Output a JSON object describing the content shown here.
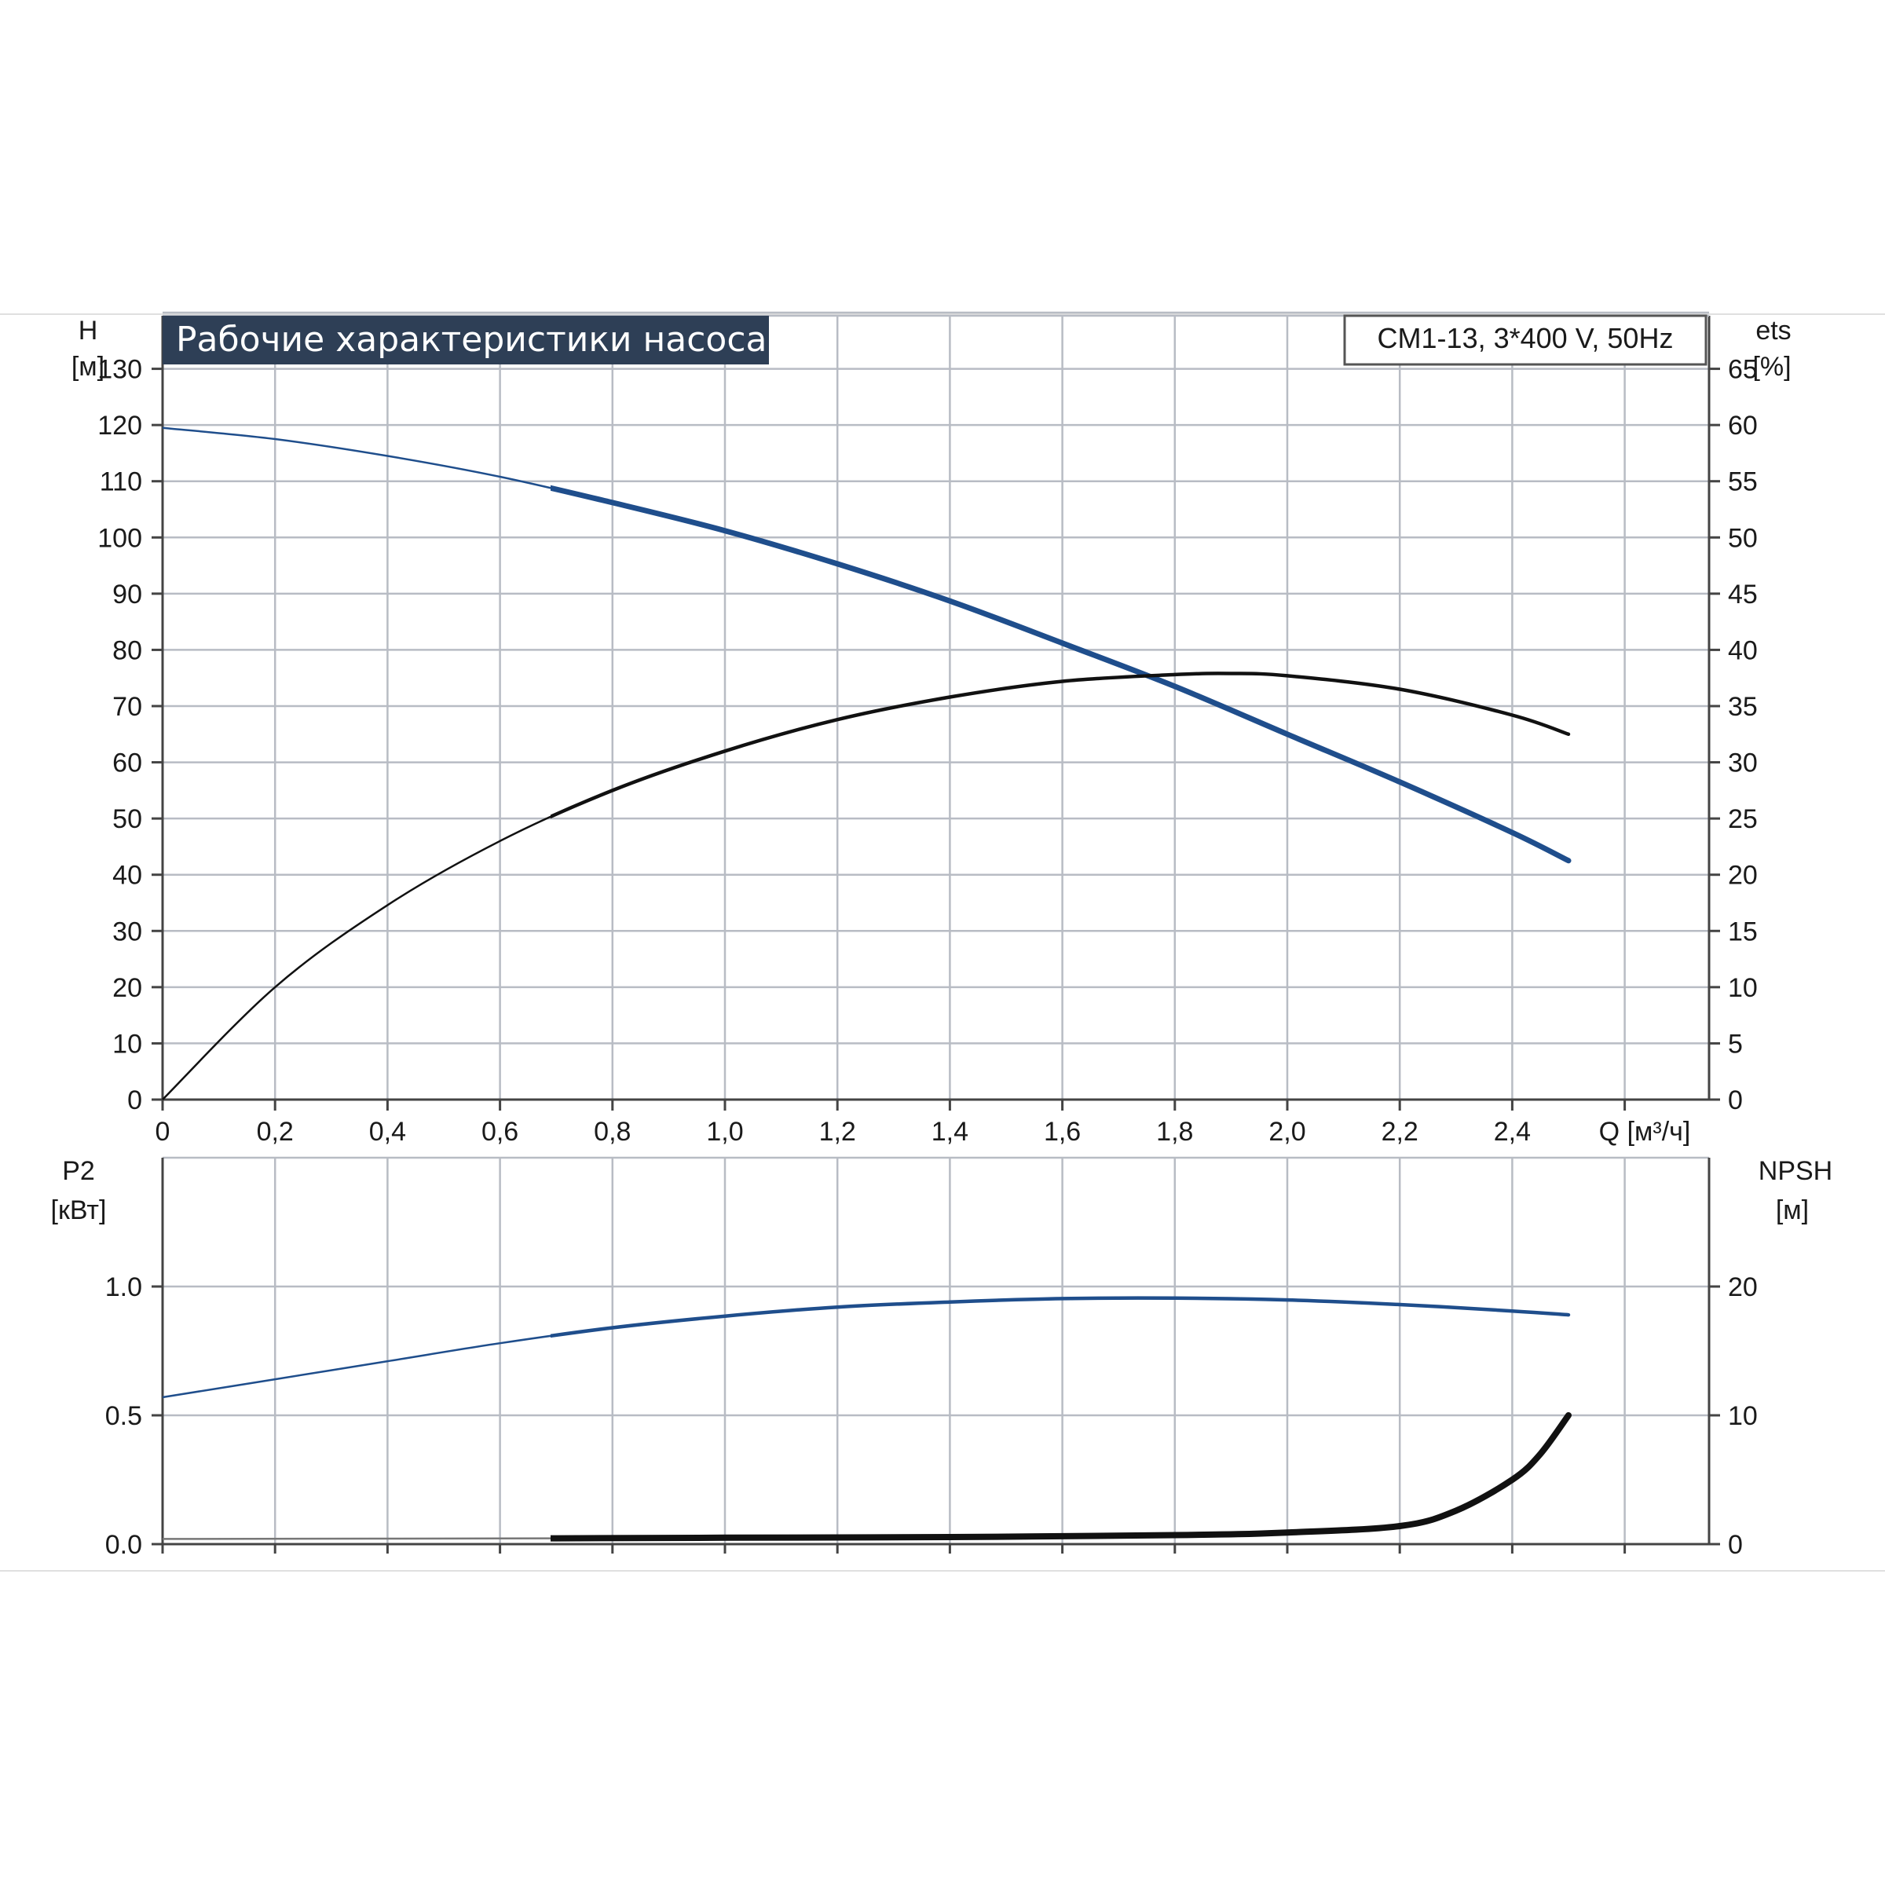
{
  "header": {
    "title": "Рабочие характеристики насоса",
    "model": "CM1-13, 3*400 V, 50Hz"
  },
  "colors": {
    "grid": "#b8bcc4",
    "frame": "#444444",
    "title_bg": "#2e3f56",
    "blue_curve": "#1f4e8c",
    "black_curve": "#111111"
  },
  "chart_data": [
    {
      "type": "line",
      "title": "Рабочие характеристики насоса",
      "x_label": "Q [м³/ч]",
      "x_ticks": [
        "0",
        "0,2",
        "0,4",
        "0,6",
        "0,8",
        "1,0",
        "1,2",
        "1,4",
        "1,6",
        "1,8",
        "2,0",
        "2,2",
        "2,4"
      ],
      "xlim": [
        0,
        2.75
      ],
      "y_left": {
        "label": "H",
        "unit": "[м]",
        "lim": [
          0,
          140
        ],
        "ticks": [
          "0",
          "10",
          "20",
          "30",
          "40",
          "50",
          "60",
          "70",
          "80",
          "90",
          "100",
          "110",
          "120",
          "130"
        ]
      },
      "y_right": {
        "label": "ets",
        "unit": "[%]",
        "lim": [
          0,
          70
        ],
        "ticks": [
          "0",
          "5",
          "10",
          "15",
          "20",
          "25",
          "30",
          "35",
          "40",
          "45",
          "50",
          "55",
          "60",
          "65"
        ]
      },
      "grid": true,
      "series": [
        {
          "axis": "left",
          "color": "#1f4e8c",
          "x": [
            0,
            0.2,
            0.4,
            0.6,
            0.8,
            1.0,
            1.2,
            1.4,
            1.6,
            1.8,
            2.0,
            2.2,
            2.4,
            2.5
          ],
          "y": [
            119.5,
            117.5,
            114.5,
            110.8,
            106.2,
            101.2,
            95.3,
            88.7,
            81.2,
            73.5,
            65.0,
            56.5,
            47.5,
            42.5
          ]
        },
        {
          "axis": "right",
          "color": "#111111",
          "x": [
            0,
            0.2,
            0.4,
            0.6,
            0.8,
            1.0,
            1.2,
            1.4,
            1.6,
            1.8,
            1.9,
            2.0,
            2.2,
            2.4,
            2.5
          ],
          "y": [
            0,
            10.0,
            17.3,
            23.0,
            27.5,
            31.0,
            33.8,
            35.8,
            37.2,
            37.8,
            37.9,
            37.7,
            36.5,
            34.2,
            32.5
          ]
        }
      ]
    },
    {
      "type": "line",
      "x_label": "",
      "xlim": [
        0,
        2.75
      ],
      "y_left": {
        "label": "P2",
        "unit": "[кВт]",
        "lim": [
          0,
          1.5
        ],
        "ticks": [
          "0.0",
          "0.5",
          "1.0"
        ]
      },
      "y_right": {
        "label": "NPSH",
        "unit": "[м]",
        "lim": [
          0,
          30
        ],
        "ticks": [
          "0",
          "10",
          "20"
        ]
      },
      "grid": true,
      "series": [
        {
          "axis": "left",
          "color": "#1f4e8c",
          "x": [
            0,
            0.2,
            0.4,
            0.6,
            0.8,
            1.0,
            1.2,
            1.4,
            1.6,
            1.8,
            2.0,
            2.2,
            2.4,
            2.5
          ],
          "y": [
            0.57,
            0.64,
            0.71,
            0.78,
            0.84,
            0.885,
            0.92,
            0.94,
            0.953,
            0.955,
            0.948,
            0.93,
            0.905,
            0.89
          ]
        },
        {
          "axis": "right",
          "color": "#111111",
          "x": [
            0,
            0.7,
            1.0,
            1.4,
            1.8,
            2.0,
            2.2,
            2.3,
            2.4,
            2.45,
            2.5
          ],
          "y": [
            0.4,
            0.45,
            0.5,
            0.55,
            0.7,
            0.9,
            1.4,
            2.6,
            5.0,
            7.0,
            10.0
          ]
        }
      ]
    }
  ]
}
